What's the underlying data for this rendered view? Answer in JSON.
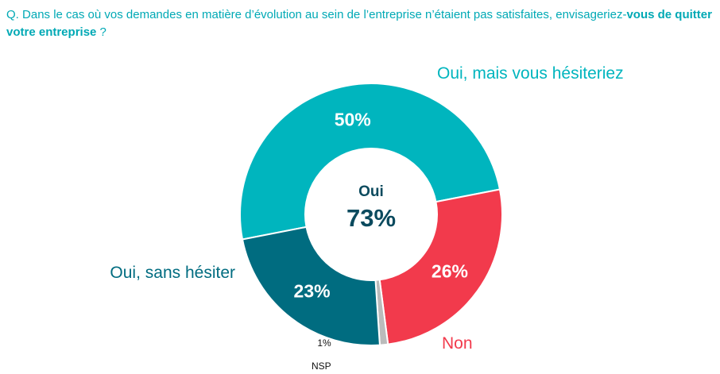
{
  "question": {
    "prefix": "Q.",
    "text": "Dans le cas où vos demandes en matière d’évolution au sein de l’entreprise n’étaient pas satisfaites, envisageriez-",
    "bold": "vous de quitter votre entreprise",
    "suffix": " ?"
  },
  "center": {
    "label": "Oui",
    "value": "73%"
  },
  "colors": {
    "oui_mais": "#00B5BE",
    "non": "#F23A4C",
    "nsp": "#BBBBBB",
    "oui_sans": "#006C80",
    "center_text": "#0B4A5E",
    "question": "#00A9B5"
  },
  "chart_data": {
    "type": "pie",
    "series": [
      {
        "name": "Oui, mais vous hésiteriez",
        "value": 50,
        "value_label": "50%",
        "color": "#00B5BE"
      },
      {
        "name": "Non",
        "value": 26,
        "value_label": "26%",
        "color": "#F23A4C"
      },
      {
        "name": "NSP",
        "value": 1,
        "value_label": "1%",
        "color": "#BBBBBB"
      },
      {
        "name": "Oui, sans hésiter",
        "value": 23,
        "value_label": "23%",
        "color": "#006C80"
      }
    ]
  }
}
